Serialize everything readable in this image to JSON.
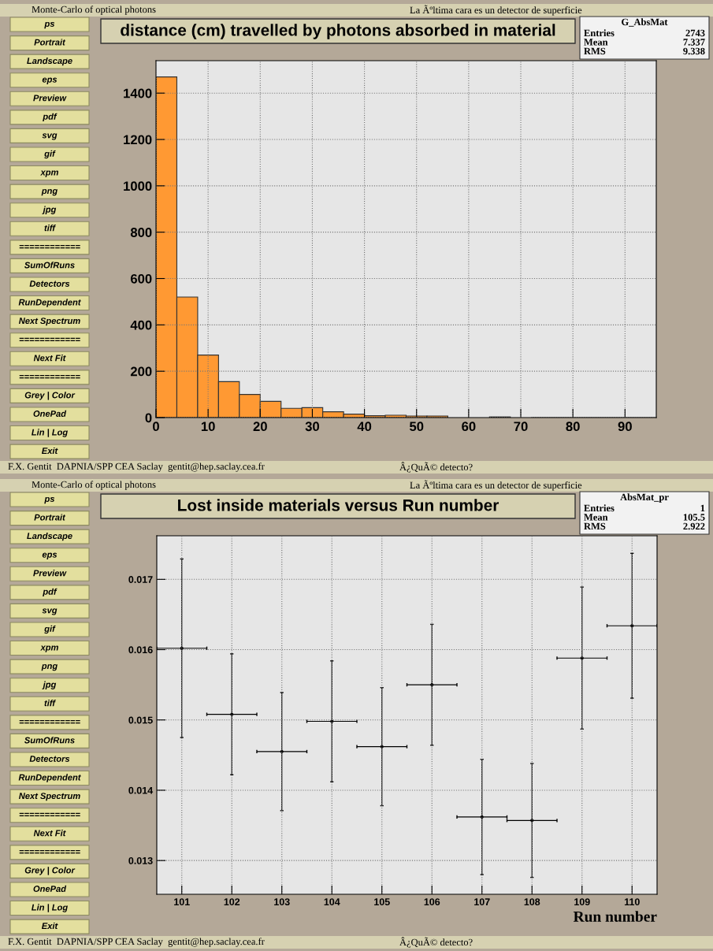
{
  "chart_data": [
    {
      "type": "histogram",
      "title": "distance (cm) travelled by photons absorbed in material",
      "color": "#ff9933",
      "bins": [
        0,
        4,
        8,
        12,
        16,
        20,
        24,
        28,
        32,
        36,
        40,
        44,
        48,
        52,
        56,
        60,
        64,
        68,
        72,
        76,
        80,
        84,
        88,
        92,
        96
      ],
      "values": [
        1470,
        520,
        270,
        155,
        100,
        70,
        40,
        43,
        25,
        15,
        8,
        10,
        7,
        7,
        null,
        null,
        3,
        null,
        0,
        0,
        0,
        0,
        0,
        0
      ],
      "xlim": [
        0,
        96
      ],
      "xticks": [
        0,
        10,
        20,
        30,
        40,
        50,
        60,
        70,
        80,
        90
      ],
      "ylim": [
        0,
        1540
      ],
      "yticks": [
        0,
        200,
        400,
        600,
        800,
        1000,
        1200,
        1400
      ],
      "grid": true,
      "annotations": [
        "Monte-Carlo of optical photons",
        "La Ãºltima cara es un detector de superficie",
        "G_AbsMat",
        "Entries",
        "2743",
        "Mean",
        "7.337",
        "RMS",
        "9.338",
        "F.X. Gentit  DAPNIA/SPP CEA Saclay  gentit@hep.saclay.cea.fr",
        "Â¿QuÃ© detecto?",
        "ps",
        "Portrait",
        "Landscape",
        "eps",
        "Preview",
        "pdf",
        "svg",
        "gif",
        "xpm",
        "png",
        "jpg",
        "tiff",
        "============",
        "SumOfRuns",
        "Detectors",
        "RunDependent",
        "Next Spectrum",
        "============",
        "Next Fit",
        "============",
        "Grey | Color",
        "OnePad",
        "Lin | Log",
        "Exit"
      ]
    },
    {
      "type": "scatter",
      "title": "Lost inside materials versus Run number",
      "xlabel": "Run number",
      "marker": "circle",
      "color": "#000000",
      "x": [
        101,
        102,
        103,
        104,
        105,
        106,
        107,
        108,
        109,
        110
      ],
      "values": [
        0.01602,
        0.01508,
        0.01455,
        0.01498,
        0.01462,
        0.0155,
        0.01362,
        0.01357,
        0.01588,
        0.01634
      ],
      "errors": [
        0.00127,
        0.00086,
        0.00084,
        0.00086,
        0.00084,
        0.00086,
        0.00082,
        0.00081,
        0.00101,
        0.00103
      ],
      "xerrors": [
        0.5,
        0.5,
        0.5,
        0.5,
        0.5,
        0.5,
        0.5,
        0.5,
        0.5,
        0.5
      ],
      "xlim": [
        100.5,
        110.5
      ],
      "xticks": [
        101,
        102,
        103,
        104,
        105,
        106,
        107,
        108,
        109,
        110
      ],
      "ylim": [
        0.01252,
        0.01762
      ],
      "yticks": [
        0.013,
        0.014,
        0.015,
        0.016,
        0.017
      ],
      "grid": true,
      "annotations": [
        "Monte-Carlo of optical photons",
        "La Ãºltima cara es un detector de superficie",
        "AbsMat_pr",
        "Entries",
        "1",
        "Mean",
        "105.5",
        "RMS",
        "2.922",
        "F.X. Gentit  DAPNIA/SPP CEA Saclay  gentit@hep.saclay.cea.fr",
        "Â¿QuÃ© detecto?",
        "ps",
        "Portrait",
        "Landscape",
        "eps",
        "Preview",
        "pdf",
        "svg",
        "gif",
        "xpm",
        "png",
        "jpg",
        "tiff",
        "============",
        "SumOfRuns",
        "Detectors",
        "RunDependent",
        "Next Spectrum",
        "============",
        "Next Fit",
        "============",
        "Grey | Color",
        "OnePad",
        "Lin | Log",
        "Exit"
      ]
    }
  ]
}
